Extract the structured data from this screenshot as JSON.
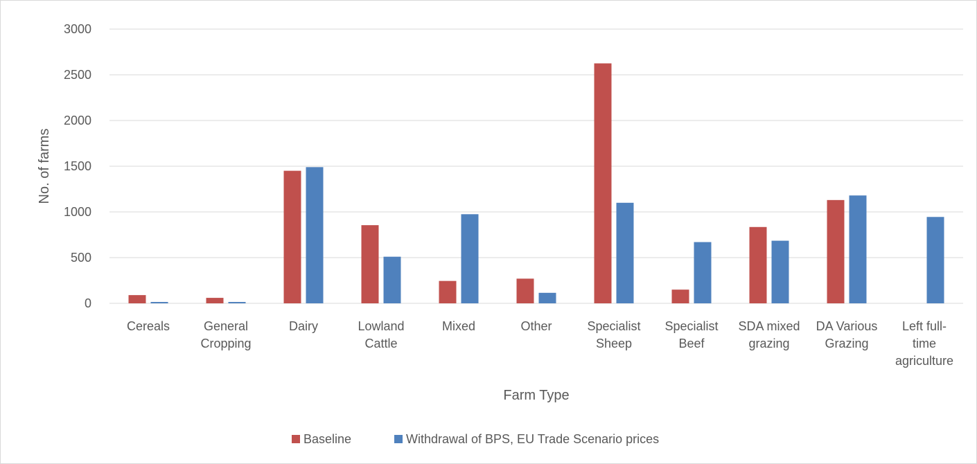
{
  "chart_data": {
    "type": "bar",
    "xlabel": "Farm Type",
    "ylabel": "No. of farms",
    "ylim": [
      0,
      3000
    ],
    "yticks": [
      0,
      500,
      1000,
      1500,
      2000,
      2500,
      3000
    ],
    "grid": true,
    "legend_position": "bottom",
    "categories": [
      [
        "Cereals"
      ],
      [
        "General",
        "Cropping"
      ],
      [
        "Dairy"
      ],
      [
        "Lowland",
        "Cattle"
      ],
      [
        "Mixed"
      ],
      [
        "Other"
      ],
      [
        "Specialist",
        "Sheep"
      ],
      [
        "Specialist",
        "Beef"
      ],
      [
        "SDA mixed",
        "grazing"
      ],
      [
        "DA Various",
        "Grazing"
      ],
      [
        "Left full-",
        "time",
        "agriculture"
      ]
    ],
    "series": [
      {
        "name": "Baseline",
        "color": "#c0504d",
        "values": [
          90,
          60,
          1450,
          855,
          245,
          270,
          2625,
          150,
          835,
          1130,
          0
        ]
      },
      {
        "name": "Withdrawal of BPS, EU Trade Scenario prices",
        "color": "#4f81bd",
        "values": [
          15,
          15,
          1490,
          510,
          975,
          115,
          1100,
          670,
          685,
          1180,
          945
        ]
      }
    ]
  }
}
